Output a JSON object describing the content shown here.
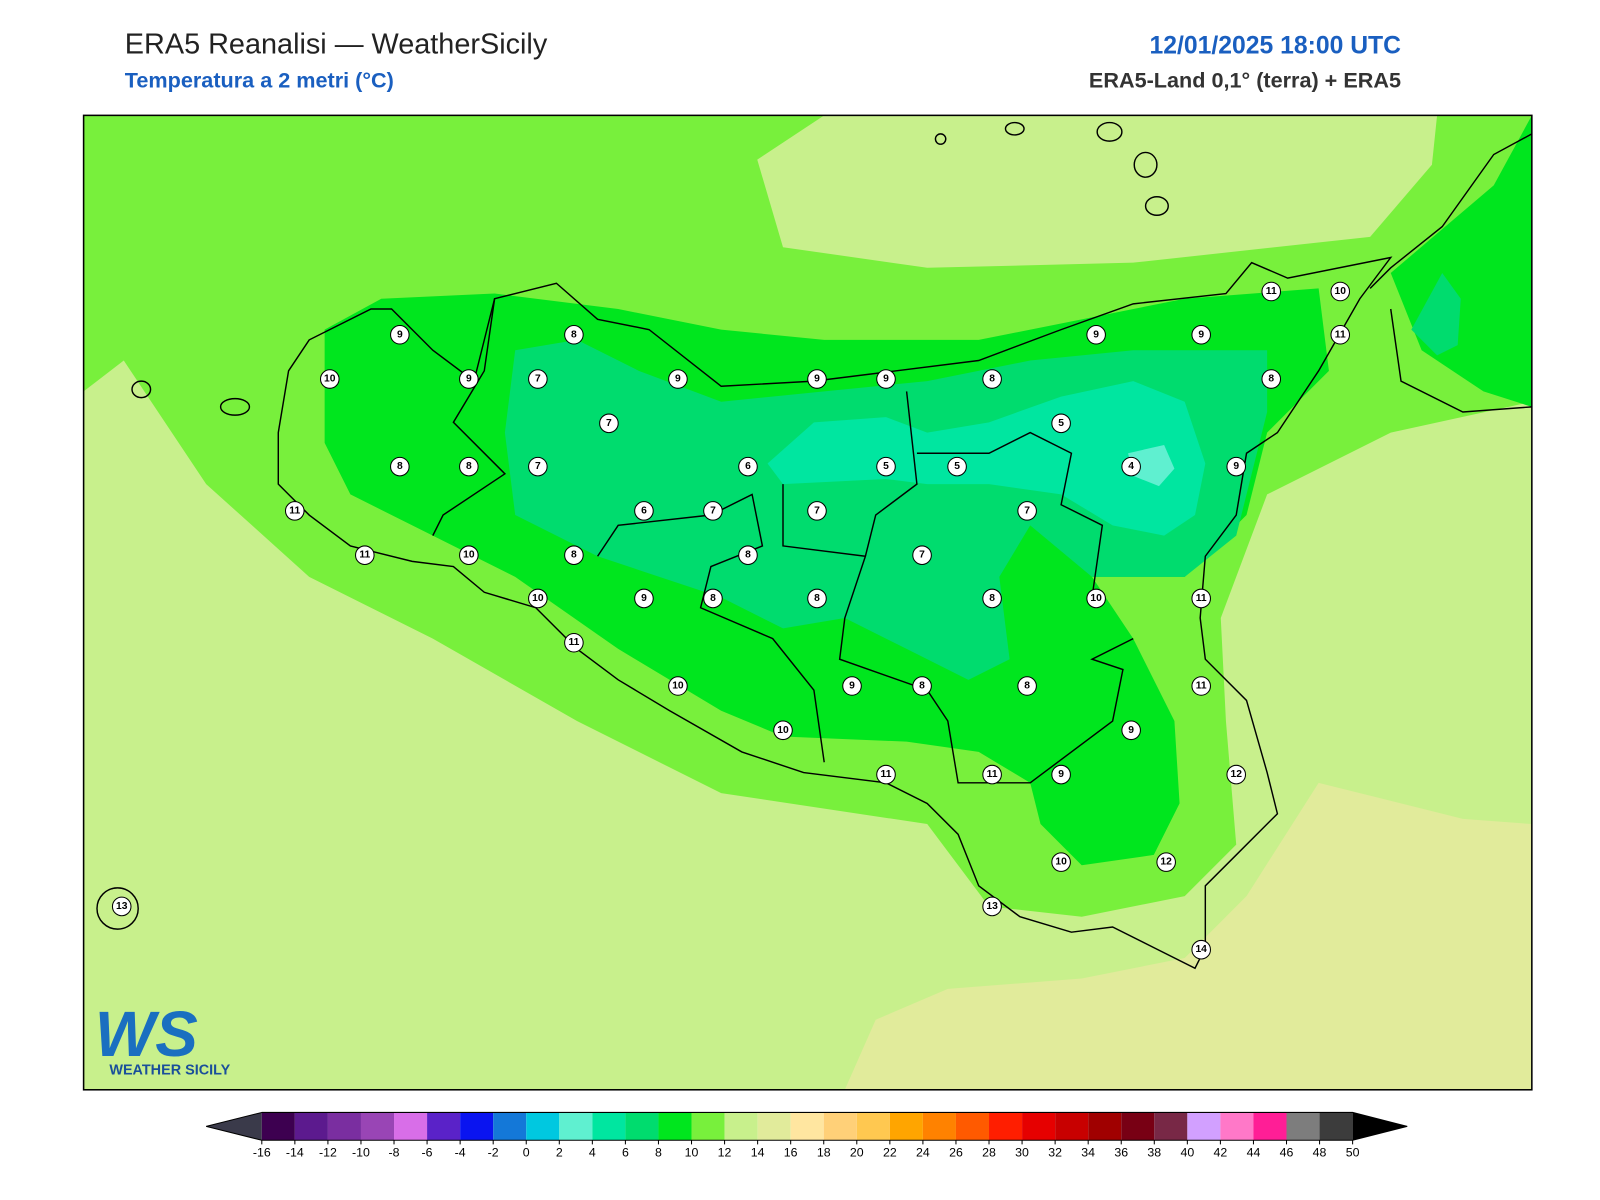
{
  "header": {
    "title": "ERA5 Reanalisi — WeatherSicily",
    "subtitle": "Temperatura a 2 metri (°C)",
    "datetime": "12/01/2025 18:00 UTC",
    "source": "ERA5-Land 0,1° (terra) + ERA5"
  },
  "logo": {
    "mark": "WS",
    "name": "WEATHER SICILY"
  },
  "station_values": [
    9,
    8,
    10,
    9,
    7,
    9,
    9,
    9,
    8,
    9,
    9,
    11,
    10,
    11,
    8,
    7,
    5,
    8,
    8,
    7,
    6,
    5,
    5,
    4,
    9,
    11,
    6,
    7,
    7,
    7,
    11,
    10,
    8,
    8,
    7,
    10,
    9,
    8,
    8,
    8,
    10,
    11,
    11,
    10,
    9,
    8,
    8,
    11,
    10,
    9,
    11,
    11,
    9,
    12,
    10,
    12,
    13,
    13,
    14
  ],
  "colorbar": {
    "ticks": [
      -16,
      -14,
      -12,
      -10,
      -8,
      -6,
      -4,
      -2,
      0,
      2,
      4,
      6,
      8,
      10,
      12,
      14,
      16,
      18,
      20,
      22,
      24,
      26,
      28,
      30,
      32,
      34,
      36,
      38,
      40,
      42,
      44,
      46,
      48,
      50
    ],
    "colors": [
      "#3d0050",
      "#5c1a8e",
      "#7a2ea0",
      "#9945b5",
      "#d86ee8",
      "#5a22c8",
      "#0a14f0",
      "#1478d8",
      "#00c8e0",
      "#5ff0d0",
      "#00e6a0",
      "#00dc6e",
      "#00e61e",
      "#78f03c",
      "#c8f08c",
      "#e1eb9b",
      "#ffe6a0",
      "#ffd078",
      "#ffc850",
      "#ffa500",
      "#ff8200",
      "#ff5a00",
      "#ff1e00",
      "#e60000",
      "#c80000",
      "#a00000",
      "#780014",
      "#782846",
      "#d2a0ff",
      "#ff78c8",
      "#ff1e96",
      "#7d7d7d",
      "#3c3c3c"
    ],
    "under_color": "#3a3a4a",
    "over_color": "#000000"
  }
}
